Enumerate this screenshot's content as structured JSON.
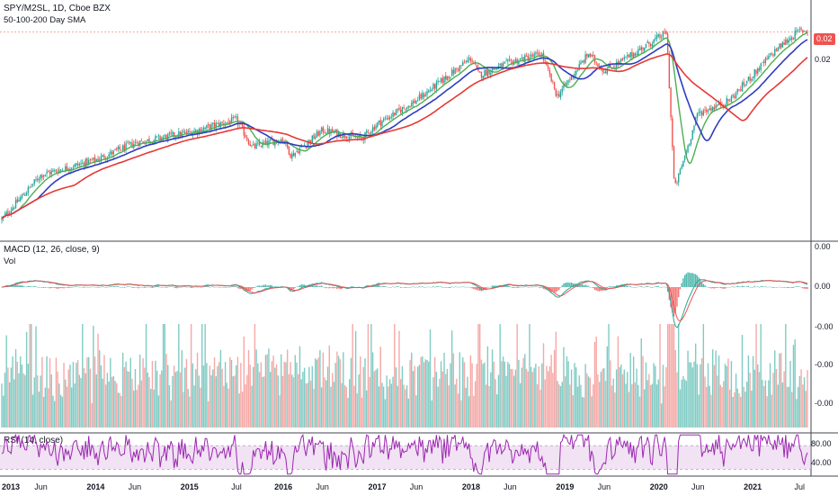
{
  "legends": {
    "main_title": "SPY/M2SL, 1D, Cboe BZX",
    "main_sub": "50-100-200 Day SMA",
    "macd_title": "MACD (12, 26, close, 9)",
    "vol_title": "Vol",
    "rsi_title": "RSI (14, close)"
  },
  "price_axis": {
    "labels": [
      "0.02"
    ],
    "last_value_tag": "0.02"
  },
  "macd_axis": {
    "labels": [
      "0.00",
      "0.00",
      "-0.00",
      "-0.00",
      "-0.00"
    ]
  },
  "rsi_axis": {
    "labels": [
      "80.00",
      "40.00"
    ]
  },
  "time_axis": {
    "labels": [
      "2013",
      "Jun",
      "2014",
      "Jun",
      "2015",
      "Jul",
      "2016",
      "Jun",
      "2017",
      "Jun",
      "2018",
      "Jun",
      "2019",
      "Jun",
      "2020",
      "Jun",
      "2021",
      "Jul"
    ]
  },
  "colors": {
    "price_up": "#26a69a",
    "price_down": "#ef5350",
    "sma50": "#4caf50",
    "sma100": "#2f3cc1",
    "sma200": "#e53935",
    "macd_line": "#26a69a",
    "signal_line": "#ef5350",
    "rsi_line": "#9c27b0",
    "rsi_band": "#e1bee7",
    "vol_up": "#80cbc4",
    "vol_down": "#f5a8a6"
  },
  "chart_data": {
    "type": "line",
    "title": "SPY/M2SL, 1D, Cboe BZX",
    "x_range": [
      "2013-01",
      "2021-08"
    ],
    "series": [
      {
        "name": "SPY/M2SL",
        "x": [
          "2013-01",
          "2013-06",
          "2014-01",
          "2014-06",
          "2015-01",
          "2015-07",
          "2015-09",
          "2016-01",
          "2016-02",
          "2016-06",
          "2016-11",
          "2017-01",
          "2017-06",
          "2018-01",
          "2018-02",
          "2018-06",
          "2018-10",
          "2018-12",
          "2019-04",
          "2019-06",
          "2019-08",
          "2020-02",
          "2020-03",
          "2020-06",
          "2020-10",
          "2021-01",
          "2021-04",
          "2021-07"
        ],
        "values_rel": [
          0.06,
          0.27,
          0.34,
          0.42,
          0.47,
          0.53,
          0.4,
          0.44,
          0.36,
          0.48,
          0.44,
          0.51,
          0.62,
          0.82,
          0.74,
          0.8,
          0.84,
          0.64,
          0.84,
          0.76,
          0.8,
          0.94,
          0.2,
          0.56,
          0.62,
          0.74,
          0.86,
          0.95
        ]
      }
    ],
    "moving_averages": [
      "50-day SMA",
      "100-day SMA",
      "200-day SMA"
    ],
    "indicators": [
      "MACD (12, 26, close, 9)",
      "Vol",
      "RSI (14, close)"
    ],
    "grid": false
  }
}
